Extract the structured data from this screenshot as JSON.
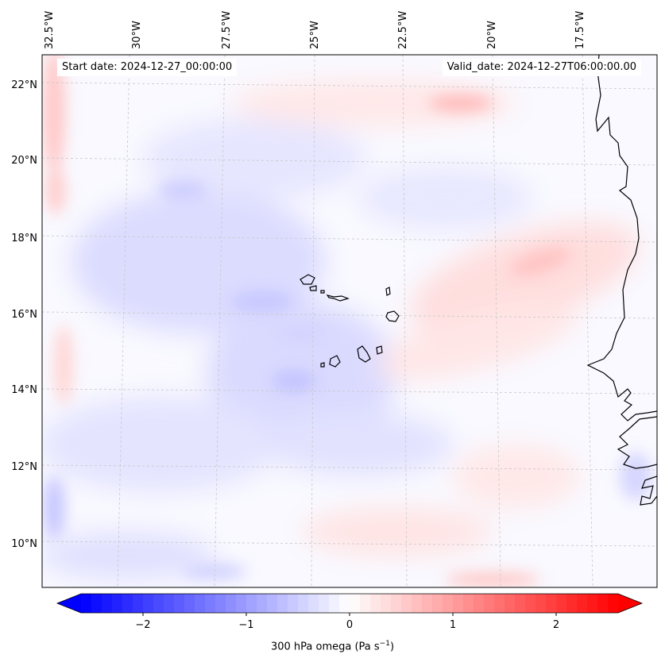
{
  "map": {
    "type": "filled-contour",
    "region": "Eastern tropical Atlantic / Cape Verde",
    "lon_labels": [
      "32.5°W",
      "30°W",
      "27.5°W",
      "25°W",
      "22.5°W",
      "20°W",
      "17.5°W"
    ],
    "lat_labels": [
      "22°N",
      "20°N",
      "18°N",
      "16°N",
      "14°N",
      "12°N",
      "10°N"
    ],
    "lon_values": [
      -32.5,
      -30,
      -27.5,
      -25,
      -22.5,
      -20,
      -17.5
    ],
    "lat_values": [
      22,
      20,
      18,
      16,
      14,
      12,
      10
    ],
    "lon_range": [
      -33.3,
      -15.6
    ],
    "lat_range": [
      8.9,
      22.8
    ]
  },
  "header": {
    "start_date": "Start date: 2024-12-27_00:00:00",
    "valid_date": "Valid_date: 2024-12-27T06:00:00.00"
  },
  "colorbar": {
    "label_prefix": "300 hPa omega (Pa s",
    "label_exponent": "−1",
    "label_suffix": ")",
    "ticks": [
      "−2",
      "−1",
      "0",
      "1",
      "2"
    ],
    "tick_values": [
      -2,
      -1,
      0,
      1,
      2
    ],
    "vmin": -2.6,
    "vmax": 2.6,
    "colormap": "bwr",
    "color_low": "#0000ff",
    "color_mid": "#ffffff",
    "color_high": "#ff0000",
    "extend": "both"
  }
}
